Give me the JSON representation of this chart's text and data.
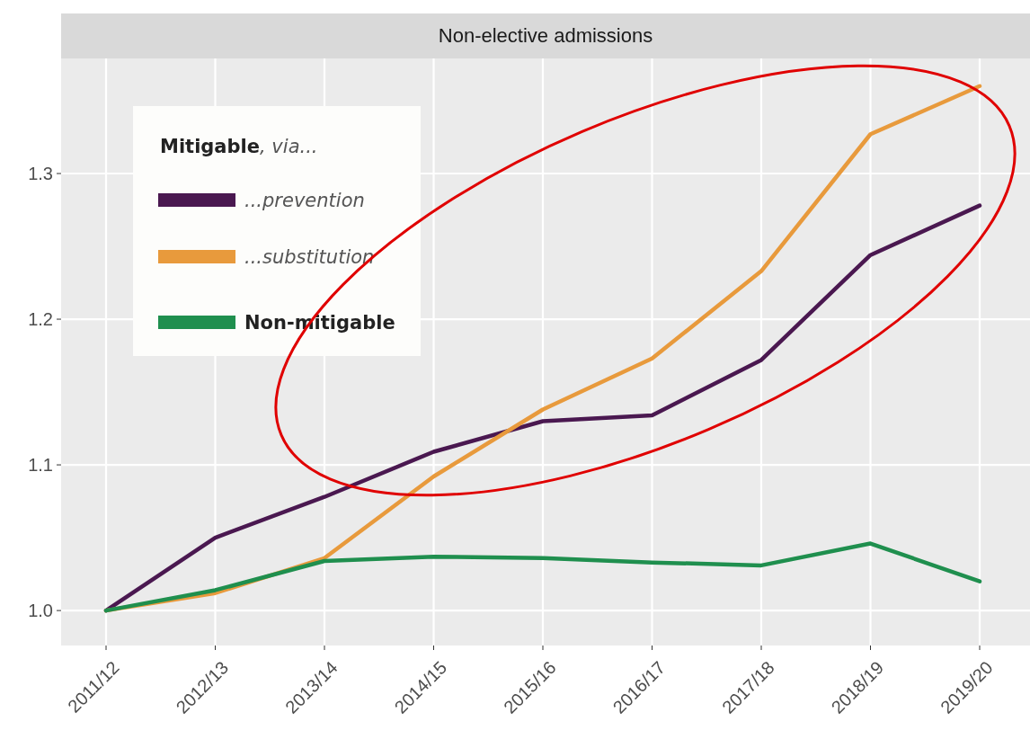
{
  "chart_data": {
    "type": "line",
    "title": "Non-elective admissions",
    "legend_title": "Mitigable, via...",
    "categories": [
      "2011/12",
      "2012/13",
      "2013/14",
      "2014/15",
      "2015/16",
      "2016/17",
      "2017/18",
      "2018/19",
      "2019/20"
    ],
    "series": [
      {
        "name": "...prevention",
        "color": "#4a1850",
        "values": [
          1.0,
          1.05,
          1.078,
          1.109,
          1.13,
          1.134,
          1.172,
          1.244,
          1.278
        ]
      },
      {
        "name": "...substitution",
        "color": "#e89a3c",
        "values": [
          1.0,
          1.012,
          1.036,
          1.092,
          1.138,
          1.173,
          1.233,
          1.327,
          1.36
        ]
      },
      {
        "name": "Non-mitigable",
        "color": "#1f8f4e",
        "values": [
          1.0,
          1.014,
          1.034,
          1.037,
          1.036,
          1.033,
          1.031,
          1.046,
          1.02
        ]
      }
    ],
    "ylim": [
      0.976,
      1.379
    ],
    "yticks": [
      {
        "value": 1,
        "label": "1.0"
      },
      1.1,
      1.2,
      1.3
    ],
    "grid": true,
    "legend": "top left"
  }
}
